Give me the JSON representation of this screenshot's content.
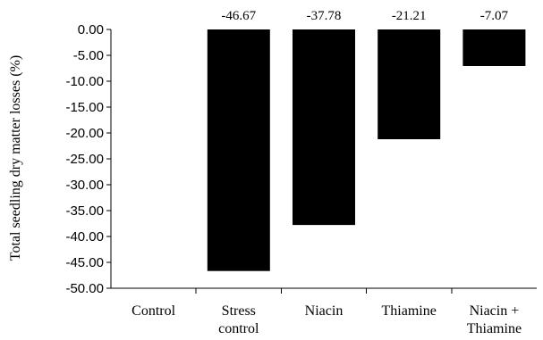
{
  "chart_data": {
    "type": "bar",
    "categories": [
      [
        "Control"
      ],
      [
        "Stress",
        "control"
      ],
      [
        "Niacin"
      ],
      [
        "Thiamine"
      ],
      [
        "Niacin +",
        "Thiamine"
      ]
    ],
    "values": [
      0,
      -46.67,
      -37.78,
      -21.21,
      -7.07
    ],
    "data_labels": [
      "",
      "-46.67",
      "-37.78",
      "-21.21",
      "-7.07"
    ],
    "ylabel": "Total seedling dry matter losses (%)",
    "xlabel": "",
    "ylim": [
      -50,
      0
    ],
    "yticks": [
      "0.00",
      "-5.00",
      "-10.00",
      "-15.00",
      "-20.00",
      "-25.00",
      "-30.00",
      "-35.00",
      "-40.00",
      "-45.00",
      "-50.00"
    ],
    "bar_color": "#000000",
    "grid": false,
    "legend": "none"
  }
}
